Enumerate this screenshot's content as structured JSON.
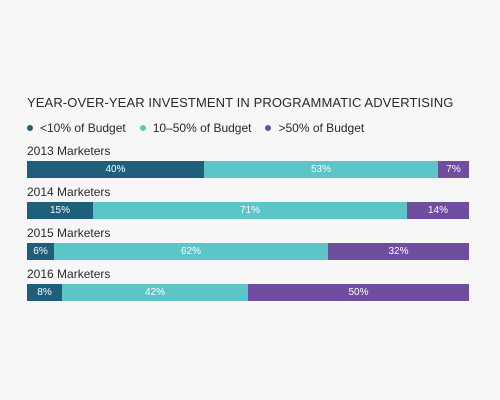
{
  "chart_data": {
    "type": "bar",
    "orientation": "horizontal",
    "stacked": true,
    "title": "YEAR-OVER-YEAR INVESTMENT IN PROGRAMMATIC ADVERTISING",
    "legend_position": "top-left",
    "series": [
      {
        "name": "<10% of Budget",
        "color": "#1f5f7c"
      },
      {
        "name": "10–50% of Budget",
        "color": "#5bc5c7"
      },
      {
        "name": ">50% of Budget",
        "color": "#6f4e9f"
      }
    ],
    "groups": [
      {
        "label": "2013 Marketers",
        "values": [
          40,
          53,
          7
        ],
        "value_labels": [
          "40%",
          "53%",
          "7%"
        ]
      },
      {
        "label": "2014 Marketers",
        "values": [
          15,
          71,
          14
        ],
        "value_labels": [
          "15%",
          "71%",
          "14%"
        ]
      },
      {
        "label": "2015 Marketers",
        "values": [
          6,
          62,
          32
        ],
        "value_labels": [
          "6%",
          "62%",
          "32%"
        ]
      },
      {
        "label": "2016 Marketers",
        "values": [
          8,
          42,
          50
        ],
        "value_labels": [
          "8%",
          "42%",
          "50%"
        ]
      }
    ],
    "xlim": [
      0,
      100
    ],
    "grid": false
  }
}
